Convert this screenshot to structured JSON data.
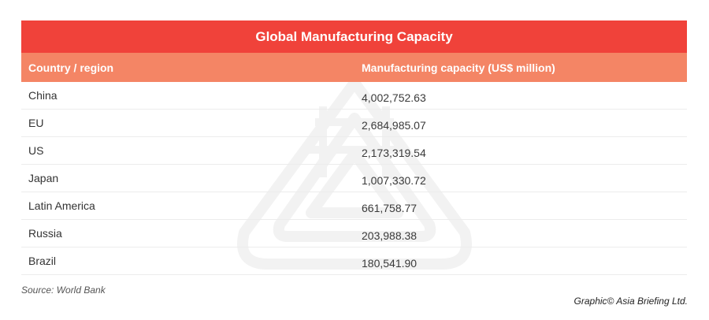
{
  "chart_data": {
    "type": "table",
    "title": "Global Manufacturing Capacity",
    "columns": [
      "Country / region",
      "Manufacturing capacity (US$ million)"
    ],
    "rows": [
      {
        "country": "China",
        "capacity": "4,002,752.63"
      },
      {
        "country": "EU",
        "capacity": "2,684,985.07"
      },
      {
        "country": "US",
        "capacity": "2,173,319.54"
      },
      {
        "country": "Japan",
        "capacity": "1,007,330.72"
      },
      {
        "country": "Latin America",
        "capacity": "661,758.77"
      },
      {
        "country": "Russia",
        "capacity": "203,988.38"
      },
      {
        "country": "Brazil",
        "capacity": "180,541.90"
      }
    ]
  },
  "footer": {
    "source": "Source: World Bank",
    "credit": "Graphic© Asia Briefing Ltd."
  },
  "colors": {
    "title_bg": "#f0423a",
    "header_bg": "#f48565",
    "row_divider": "#ececec"
  },
  "icons": {
    "watermark": "asia-briefing-logo-icon"
  }
}
